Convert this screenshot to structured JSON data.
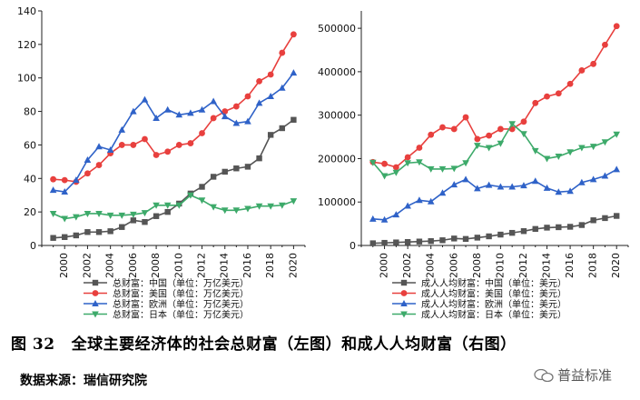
{
  "chart_data": [
    {
      "type": "line",
      "x": [
        1999,
        2000,
        2001,
        2002,
        2003,
        2004,
        2005,
        2006,
        2007,
        2008,
        2009,
        2010,
        2011,
        2012,
        2013,
        2014,
        2015,
        2016,
        2017,
        2018,
        2019,
        2020
      ],
      "x_tick_labels": [
        "2000",
        "2002",
        "2004",
        "2006",
        "2008",
        "2010",
        "2012",
        "2014",
        "2016",
        "2018",
        "2020"
      ],
      "y_ticks": [
        0,
        20,
        40,
        60,
        80,
        100,
        120,
        140
      ],
      "ylim": [
        0,
        140
      ],
      "xlim": [
        1998,
        2021
      ],
      "legend_position": "bottom",
      "series": [
        {
          "name": "总财富：中国（单位：万亿美元）",
          "color": "#555555",
          "marker": "square",
          "values": [
            4.5,
            5,
            6,
            8,
            8,
            8.5,
            11,
            15,
            14,
            17.5,
            20,
            25,
            31,
            35,
            41,
            44,
            46,
            47,
            52,
            66,
            70,
            75
          ]
        },
        {
          "name": "总财富：美国（单位：万亿美元）",
          "color": "#e8403e",
          "marker": "circle",
          "values": [
            39.5,
            39,
            38,
            43,
            48,
            55,
            60,
            60,
            63.5,
            54,
            56,
            60,
            61,
            67,
            76,
            80,
            83,
            89,
            98,
            102,
            115,
            126
          ]
        },
        {
          "name": "总财富：欧洲（单位：万亿美元）",
          "color": "#2f62c8",
          "marker": "triangle",
          "values": [
            33,
            32,
            39,
            51,
            59,
            57,
            69,
            80,
            87,
            76,
            81,
            78,
            79,
            81,
            86,
            77,
            73,
            74,
            85,
            89,
            94,
            103
          ]
        },
        {
          "name": "总财富：日本（单位：万亿美元）",
          "color": "#3daa6a",
          "marker": "triangle-down",
          "values": [
            19,
            16,
            17,
            19,
            19,
            18,
            18,
            18.5,
            19.5,
            24,
            24,
            24,
            30,
            27,
            23,
            21,
            21,
            22,
            23.5,
            23.5,
            24,
            26.5
          ]
        }
      ]
    },
    {
      "type": "line",
      "x": [
        1999,
        2000,
        2001,
        2002,
        2003,
        2004,
        2005,
        2006,
        2007,
        2008,
        2009,
        2010,
        2011,
        2012,
        2013,
        2014,
        2015,
        2016,
        2017,
        2018,
        2019,
        2020
      ],
      "x_tick_labels": [
        "2000",
        "2002",
        "2004",
        "2006",
        "2008",
        "2010",
        "2012",
        "2014",
        "2016",
        "2018",
        "2020"
      ],
      "y_ticks": [
        0,
        100000,
        200000,
        300000,
        400000,
        500000
      ],
      "ylim": [
        0,
        540000
      ],
      "xlim": [
        1998,
        2021
      ],
      "legend_position": "bottom",
      "series": [
        {
          "name": "成人人均财富：中国（单位：美元）",
          "color": "#555555",
          "marker": "square",
          "values": [
            5000,
            6000,
            7000,
            8000,
            9000,
            10000,
            12000,
            16000,
            15000,
            18000,
            21000,
            25000,
            29000,
            33000,
            38000,
            41000,
            42000,
            43000,
            47000,
            58000,
            63000,
            68000
          ]
        },
        {
          "name": "成人人均财富：美国（单位：美元）",
          "color": "#e8403e",
          "marker": "circle",
          "values": [
            192000,
            188000,
            180000,
            203000,
            225000,
            255000,
            272000,
            268000,
            295000,
            245000,
            253000,
            268000,
            268000,
            285000,
            328000,
            343000,
            350000,
            372000,
            403000,
            418000,
            462000,
            505000
          ]
        },
        {
          "name": "成人人均财富：欧洲（单位：美元）",
          "color": "#2f62c8",
          "marker": "triangle",
          "values": [
            61000,
            59000,
            71000,
            91000,
            104000,
            101000,
            121000,
            140000,
            152000,
            131000,
            139000,
            135000,
            135000,
            138000,
            148000,
            132000,
            123000,
            125000,
            145000,
            152000,
            160000,
            175000
          ]
        },
        {
          "name": "成人人均财富：日本（单位：美元）",
          "color": "#3daa6a",
          "marker": "triangle-down",
          "values": [
            191000,
            160000,
            168000,
            190000,
            192000,
            176000,
            176000,
            177000,
            190000,
            230000,
            225000,
            235000,
            280000,
            257000,
            218000,
            200000,
            205000,
            215000,
            225000,
            228000,
            238000,
            256000
          ]
        }
      ]
    }
  ],
  "caption": {
    "number": "图 32",
    "text": "全球主要经济体的社会总财富（左图）和成人人均财富（右图）"
  },
  "source": "数据来源：瑞信研究院",
  "watermark": "普益标准",
  "watermark_icon": "wechat-icon"
}
